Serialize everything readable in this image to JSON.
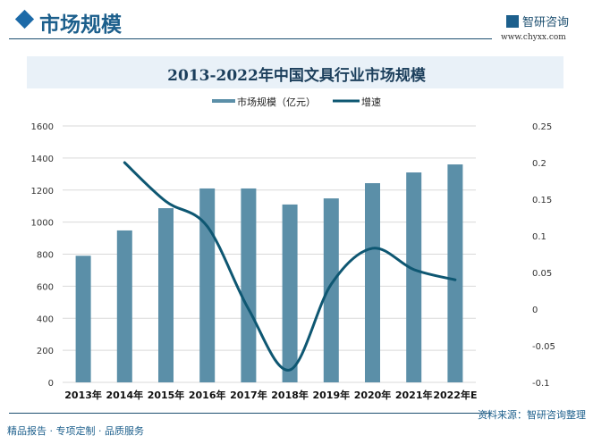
{
  "header": {
    "title": "市场规模",
    "brand": "智研咨询",
    "url": "www.chyxx.com"
  },
  "footer": {
    "source": "资料来源：智研咨询整理",
    "slogan": "精品报告 · 专项定制 · 品质服务"
  },
  "colors": {
    "bar": "#5b8fa8",
    "line": "#0e5772"
  },
  "chart_data": {
    "type": "bar+line",
    "title": "2013-2022年中国文具行业市场规模",
    "categories": [
      "2013年",
      "2014年",
      "2015年",
      "2016年",
      "2017年",
      "2018年",
      "2019年",
      "2020年",
      "2021年",
      "2022年E"
    ],
    "series": [
      {
        "name": "市场规模（亿元）",
        "type": "bar",
        "axis": "left",
        "values": [
          790,
          948,
          1087,
          1210,
          1210,
          1110,
          1148,
          1243,
          1310,
          1360
        ]
      },
      {
        "name": "增速",
        "type": "line",
        "axis": "right",
        "values": [
          null,
          0.2,
          0.147,
          0.113,
          0.0,
          -0.083,
          0.034,
          0.083,
          0.054,
          0.04
        ]
      }
    ],
    "left_axis": {
      "ylim": [
        0,
        1600
      ],
      "ticks": [
        "0",
        "200",
        "400",
        "600",
        "800",
        "1000",
        "1200",
        "1400",
        "1600"
      ]
    },
    "right_axis": {
      "ylim": [
        -0.1,
        0.25
      ],
      "ticks": [
        "-0.1",
        "-0.05",
        "0",
        "0.05",
        "0.1",
        "0.15",
        "0.2",
        "0.25"
      ]
    },
    "legend_position": "top-center",
    "grid": true
  }
}
